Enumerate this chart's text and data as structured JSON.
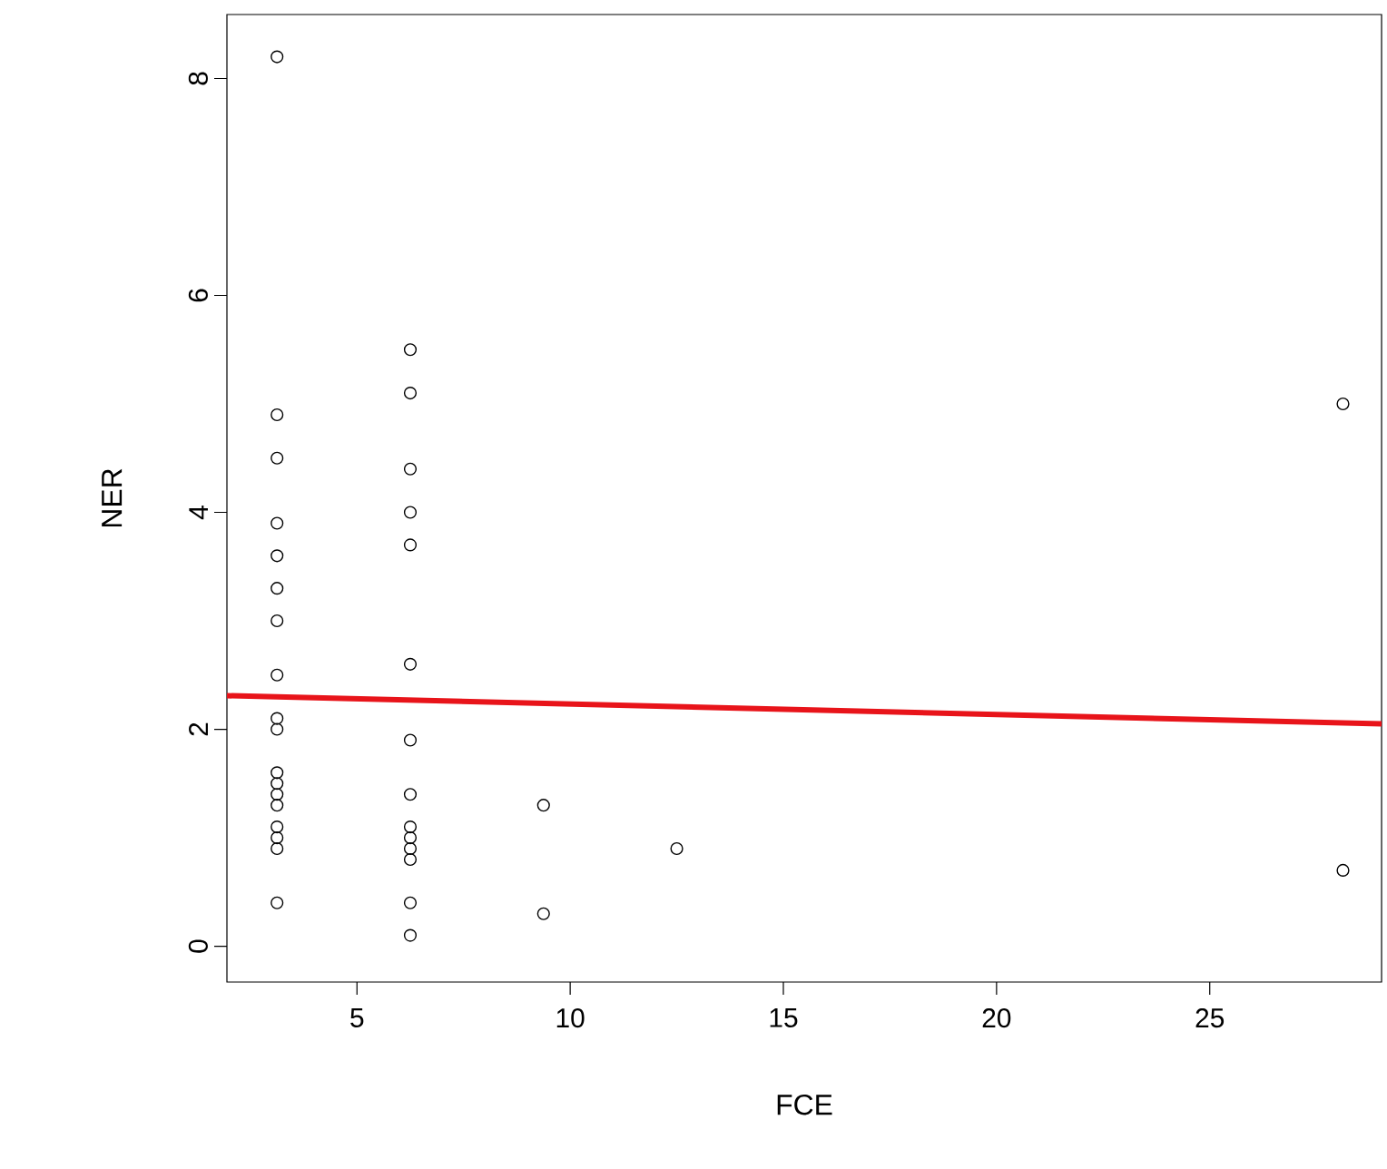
{
  "chart_data": {
    "type": "scatter",
    "xlabel": "FCE",
    "ylabel": "NER",
    "xlim": [
      1.95,
      29.03
    ],
    "ylim": [
      -0.33,
      8.59
    ],
    "xticks": [
      5,
      10,
      15,
      20,
      25
    ],
    "yticks": [
      0,
      2,
      4,
      6,
      8
    ],
    "marker": "circle",
    "series": [
      {
        "color": "#000000",
        "x": [
          3.125,
          3.125,
          3.125,
          3.125,
          3.125,
          3.125,
          3.125,
          3.125,
          3.125,
          3.125,
          3.125,
          3.125,
          3.125,
          3.125,
          3.125,
          3.125,
          3.125,
          3.125,
          6.25,
          6.25,
          6.25,
          6.25,
          6.25,
          6.25,
          6.25,
          6.25,
          6.25,
          6.25,
          6.25,
          6.25,
          6.25,
          6.25,
          9.375,
          9.375,
          12.5,
          28.125,
          28.125
        ],
        "values": [
          8.2,
          4.9,
          4.5,
          3.9,
          3.6,
          3.3,
          3.0,
          2.5,
          2.1,
          2.0,
          1.6,
          1.5,
          1.4,
          1.3,
          1.1,
          1.0,
          0.9,
          0.4,
          5.5,
          5.1,
          4.4,
          4.0,
          3.7,
          2.6,
          1.9,
          1.4,
          1.1,
          1.0,
          0.9,
          0.8,
          0.4,
          0.1,
          1.3,
          0.3,
          0.9,
          5.0,
          0.7
        ]
      },
      {
        "type": "line",
        "color": "#e8141a",
        "marker": "none",
        "x": [
          1.95,
          29.03
        ],
        "values": [
          2.31,
          2.05
        ]
      }
    ]
  }
}
